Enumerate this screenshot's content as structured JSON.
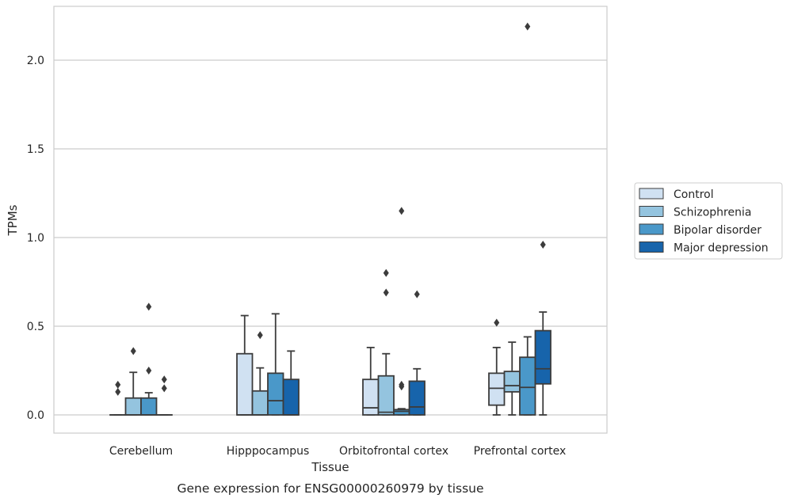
{
  "chart_data": {
    "type": "boxplot",
    "title": "",
    "caption": "Gene expression for ENSG00000260979 by tissue",
    "xlabel": "Tissue",
    "ylabel": "TPMs",
    "ylim": [
      -0.1,
      2.3
    ],
    "yticks": [
      0.0,
      0.5,
      1.0,
      1.5,
      2.0
    ],
    "ytick_labels": [
      "0.0",
      "0.5",
      "1.0",
      "1.5",
      "2.0"
    ],
    "grid": "horizontal",
    "legend_position": "right",
    "categories": [
      "Cerebellum",
      "Hipppocampus",
      "Orbitofrontal cortex",
      "Prefrontal cortex"
    ],
    "series": [
      {
        "name": "Control",
        "color": "#d0e1f2",
        "boxes": [
          {
            "q1": 0.0,
            "median": 0.0,
            "q3": 0.0,
            "whisker_low": 0.0,
            "whisker_high": 0.0,
            "outliers": [
              0.17,
              0.13
            ]
          },
          {
            "q1": 0.0,
            "median": 0.0,
            "q3": 0.345,
            "whisker_low": 0.0,
            "whisker_high": 0.56,
            "outliers": []
          },
          {
            "q1": 0.0,
            "median": 0.04,
            "q3": 0.2,
            "whisker_low": 0.0,
            "whisker_high": 0.38,
            "outliers": []
          },
          {
            "q1": 0.055,
            "median": 0.15,
            "q3": 0.235,
            "whisker_low": 0.0,
            "whisker_high": 0.38,
            "outliers": [
              0.52
            ]
          }
        ]
      },
      {
        "name": "Schizophrenia",
        "color": "#94c4df",
        "boxes": [
          {
            "q1": 0.0,
            "median": 0.0,
            "q3": 0.095,
            "whisker_low": 0.0,
            "whisker_high": 0.24,
            "outliers": [
              0.36
            ]
          },
          {
            "q1": 0.0,
            "median": 0.0,
            "q3": 0.135,
            "whisker_low": 0.0,
            "whisker_high": 0.265,
            "outliers": [
              0.45
            ]
          },
          {
            "q1": 0.0,
            "median": 0.015,
            "q3": 0.22,
            "whisker_low": 0.0,
            "whisker_high": 0.345,
            "outliers": [
              0.8,
              0.69
            ]
          },
          {
            "q1": 0.13,
            "median": 0.165,
            "q3": 0.245,
            "whisker_low": 0.0,
            "whisker_high": 0.41,
            "outliers": []
          }
        ]
      },
      {
        "name": "Bipolar disorder",
        "color": "#4a98c9",
        "boxes": [
          {
            "q1": 0.0,
            "median": 0.0,
            "q3": 0.095,
            "whisker_low": 0.0,
            "whisker_high": 0.125,
            "outliers": [
              0.61,
              0.25
            ]
          },
          {
            "q1": 0.0,
            "median": 0.08,
            "q3": 0.235,
            "whisker_low": 0.0,
            "whisker_high": 0.57,
            "outliers": []
          },
          {
            "q1": 0.0,
            "median": 0.02,
            "q3": 0.03,
            "whisker_low": 0.0,
            "whisker_high": 0.035,
            "outliers": [
              1.15,
              0.17,
              0.16
            ]
          },
          {
            "q1": 0.0,
            "median": 0.155,
            "q3": 0.325,
            "whisker_low": 0.0,
            "whisker_high": 0.44,
            "outliers": [
              2.19
            ]
          }
        ]
      },
      {
        "name": "Major depression",
        "color": "#1764ab",
        "boxes": [
          {
            "q1": 0.0,
            "median": 0.0,
            "q3": 0.0,
            "whisker_low": 0.0,
            "whisker_high": 0.0,
            "outliers": [
              0.2,
              0.15
            ]
          },
          {
            "q1": 0.0,
            "median": 0.0,
            "q3": 0.2,
            "whisker_low": 0.0,
            "whisker_high": 0.36,
            "outliers": []
          },
          {
            "q1": 0.0,
            "median": 0.045,
            "q3": 0.19,
            "whisker_low": 0.0,
            "whisker_high": 0.26,
            "outliers": [
              0.68
            ]
          },
          {
            "q1": 0.175,
            "median": 0.26,
            "q3": 0.475,
            "whisker_low": 0.0,
            "whisker_high": 0.58,
            "outliers": [
              0.96
            ]
          }
        ]
      }
    ]
  }
}
